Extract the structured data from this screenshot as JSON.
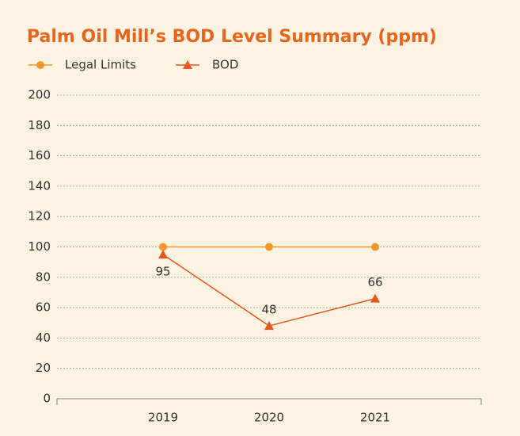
{
  "chart_data": {
    "type": "line",
    "title": "Palm Oil Mill’s BOD Level Summary (ppm)",
    "categories": [
      "2019",
      "2020",
      "2021"
    ],
    "series": [
      {
        "name": "Legal Limits",
        "color": "#f5962a",
        "marker": "circle",
        "values": [
          100,
          100,
          100
        ]
      },
      {
        "name": "BOD",
        "color": "#e8561f",
        "marker": "triangle",
        "values": [
          95,
          48,
          66
        ],
        "data_labels": true
      }
    ],
    "ylim": [
      0,
      200
    ],
    "yticks": [
      0,
      20,
      40,
      60,
      80,
      100,
      120,
      140,
      160,
      180,
      200
    ],
    "grid": true,
    "legend": "top-left"
  }
}
